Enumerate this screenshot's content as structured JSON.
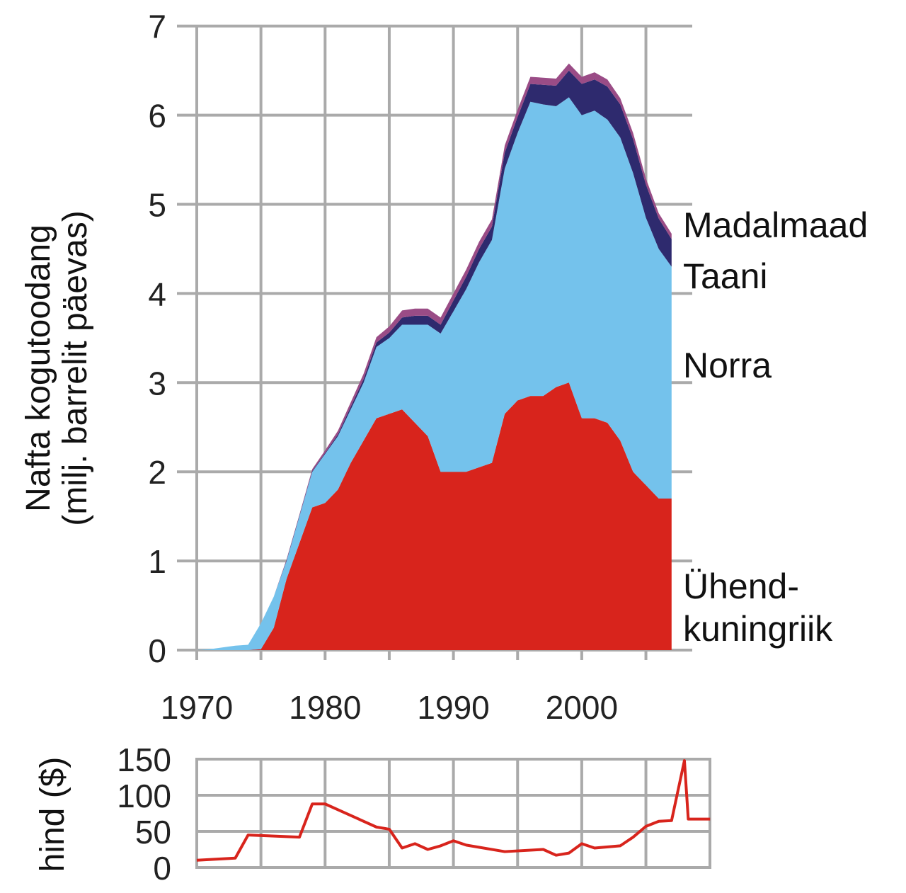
{
  "chart_data": [
    {
      "type": "area",
      "stacked": true,
      "ylabel_line1": "Nafta kogutoodang",
      "ylabel_line2": "(milj. barrelit päevas)",
      "xlim": [
        1970,
        2010
      ],
      "ylim": [
        0,
        7
      ],
      "grid": true,
      "legend": "right-inline",
      "x_ticks": [
        "1970",
        "1980",
        "1990",
        "2000"
      ],
      "y_ticks": [
        "0",
        "1",
        "2",
        "3",
        "4",
        "5",
        "6",
        "7"
      ],
      "x": [
        1970,
        1971,
        1972,
        1973,
        1974,
        1975,
        1976,
        1977,
        1978,
        1979,
        1980,
        1981,
        1982,
        1983,
        1984,
        1985,
        1986,
        1987,
        1988,
        1989,
        1990,
        1991,
        1992,
        1993,
        1994,
        1995,
        1996,
        1997,
        1998,
        1999,
        2000,
        2001,
        2002,
        2003,
        2004,
        2005,
        2006,
        2007
      ],
      "series": [
        {
          "name": "Ühend-kuningriik",
          "label_line1": "Ühend-",
          "label_line2": "kuningriik",
          "color": "#d8241c",
          "values": [
            0,
            0,
            0,
            0,
            0,
            0.01,
            0.25,
            0.8,
            1.2,
            1.6,
            1.65,
            1.8,
            2.1,
            2.35,
            2.6,
            2.65,
            2.7,
            2.55,
            2.4,
            2.0,
            2.0,
            2.0,
            2.05,
            2.1,
            2.65,
            2.8,
            2.85,
            2.85,
            2.95,
            3.0,
            2.6,
            2.6,
            2.55,
            2.35,
            2.0,
            1.85,
            1.7,
            1.7
          ]
        },
        {
          "name": "Norra",
          "color": "#74c2ec",
          "values": [
            0,
            0.01,
            0.03,
            0.05,
            0.06,
            0.29,
            0.35,
            0.2,
            0.3,
            0.4,
            0.55,
            0.6,
            0.6,
            0.65,
            0.8,
            0.85,
            0.95,
            1.1,
            1.25,
            1.55,
            1.8,
            2.05,
            2.3,
            2.5,
            2.75,
            3.0,
            3.3,
            3.27,
            3.15,
            3.2,
            3.4,
            3.45,
            3.4,
            3.4,
            3.35,
            3.0,
            2.8,
            2.6
          ]
        },
        {
          "name": "Taani",
          "color": "#2e2a6e",
          "values": [
            0,
            0,
            0,
            0,
            0,
            0,
            0,
            0.01,
            0.01,
            0.01,
            0.01,
            0.02,
            0.03,
            0.04,
            0.05,
            0.06,
            0.08,
            0.1,
            0.1,
            0.1,
            0.12,
            0.14,
            0.15,
            0.15,
            0.18,
            0.18,
            0.2,
            0.22,
            0.23,
            0.3,
            0.35,
            0.35,
            0.37,
            0.37,
            0.38,
            0.37,
            0.34,
            0.31
          ]
        },
        {
          "name": "Madalmaad",
          "color": "#9a4c86",
          "values": [
            0,
            0,
            0,
            0,
            0,
            0,
            0,
            0.01,
            0.01,
            0.02,
            0.03,
            0.04,
            0.05,
            0.06,
            0.06,
            0.07,
            0.08,
            0.08,
            0.08,
            0.08,
            0.08,
            0.08,
            0.08,
            0.08,
            0.08,
            0.08,
            0.08,
            0.08,
            0.08,
            0.08,
            0.08,
            0.08,
            0.08,
            0.07,
            0.07,
            0.07,
            0.06,
            0.06
          ]
        }
      ]
    },
    {
      "type": "line",
      "ylabel": "hind ($)",
      "xlim": [
        1970,
        2010
      ],
      "ylim": [
        0,
        150
      ],
      "grid": true,
      "y_ticks": [
        "0",
        "50",
        "100",
        "150"
      ],
      "series": [
        {
          "color": "#d8241c",
          "x": [
            1970,
            1973,
            1974,
            1978,
            1979,
            1980,
            1984,
            1985,
            1986,
            1987,
            1988,
            1989,
            1990,
            1991,
            1994,
            1997,
            1998,
            1999,
            2000,
            2001,
            2003,
            2004,
            2005,
            2006,
            2007,
            2008,
            2008.3,
            2010
          ],
          "values": [
            10,
            13,
            45,
            42,
            88,
            88,
            56,
            53,
            27,
            33,
            25,
            30,
            37,
            31,
            22,
            25,
            17,
            20,
            33,
            27,
            30,
            42,
            57,
            64,
            65,
            148,
            67,
            67
          ]
        }
      ]
    }
  ]
}
